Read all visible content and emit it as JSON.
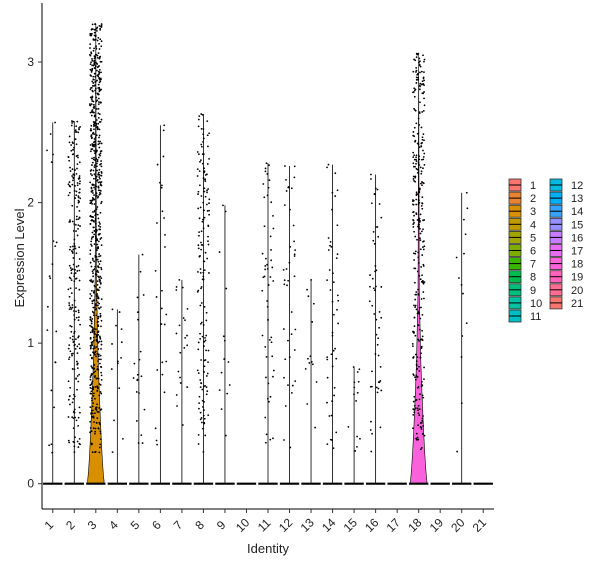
{
  "chart_data": {
    "type": "violin",
    "xlabel": "Identity",
    "ylabel": "Expression Level",
    "ylim": [
      -0.18,
      3.42
    ],
    "y_ticks": [
      0,
      1,
      2,
      3
    ],
    "categories": [
      "1",
      "2",
      "3",
      "4",
      "5",
      "6",
      "7",
      "8",
      "9",
      "10",
      "11",
      "12",
      "13",
      "14",
      "15",
      "16",
      "17",
      "18",
      "19",
      "20",
      "21"
    ],
    "colors": [
      "#F8766D",
      "#EA8331",
      "#D89000",
      "#C09B00",
      "#A3A500",
      "#7CAE00",
      "#39B600",
      "#00BB4E",
      "#00BF7D",
      "#00C1A3",
      "#00BFC4",
      "#00BAE0",
      "#00B0F6",
      "#35A2FF",
      "#9590FF",
      "#C77CFF",
      "#E76BF3",
      "#FA62DB",
      "#FF62BC",
      "#FF6C91",
      "#F8766D"
    ],
    "max_values": [
      2.57,
      2.58,
      3.27,
      1.24,
      1.63,
      2.55,
      1.45,
      2.63,
      1.98,
      0,
      2.28,
      2.26,
      1.45,
      2.27,
      0.83,
      2.2,
      0,
      3.06,
      0,
      2.07,
      0
    ],
    "expressing_fraction": [
      0.015,
      0.18,
      0.55,
      0.01,
      0.015,
      0.02,
      0.015,
      0.12,
      0.01,
      0,
      0.04,
      0.03,
      0.01,
      0.035,
      0.01,
      0.04,
      0,
      0.25,
      0,
      0.01,
      0
    ],
    "legend": {
      "position": "right",
      "items": [
        "1",
        "2",
        "3",
        "4",
        "5",
        "6",
        "7",
        "8",
        "9",
        "10",
        "11",
        "12",
        "13",
        "14",
        "15",
        "16",
        "17",
        "18",
        "19",
        "20",
        "21"
      ]
    },
    "grid": false
  }
}
